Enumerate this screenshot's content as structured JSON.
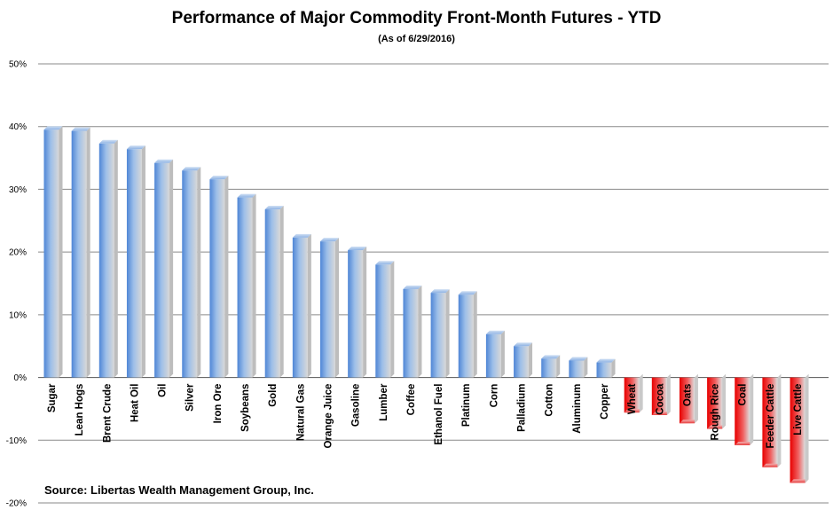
{
  "chart_data": {
    "type": "bar",
    "title": "Performance of Major Commodity Front-Month Futures - YTD",
    "subtitle": "(As of 6/29/2016)",
    "source": "Source:  Libertas Wealth Management Group, Inc.",
    "xlabel": "",
    "ylabel": "",
    "ylim": [
      -20,
      50
    ],
    "yticks": [
      50,
      40,
      30,
      20,
      10,
      0,
      -10,
      -20
    ],
    "ytick_labels": [
      "50%",
      "40%",
      "30%",
      "20%",
      "10%",
      "0%",
      "-10%",
      "-20%"
    ],
    "grid": true,
    "categories": [
      "Sugar",
      "Lean Hogs",
      "Brent Crude",
      "Heat Oil",
      "Oil",
      "Silver",
      "Iron Ore",
      "Soybeans",
      "Gold",
      "Natural Gas",
      "Orange Juice",
      "Gasoline",
      "Lumber",
      "Coffee",
      "Ethanol Fuel",
      "Platinum",
      "Corn",
      "Palladium",
      "Cotton",
      "Aluminum",
      "Copper",
      "Wheat",
      "Cocoa",
      "Oats",
      "Rough Rice",
      "Coal",
      "Feeder Cattle",
      "Live Cattle"
    ],
    "values": [
      39.5,
      39.3,
      37.3,
      36.4,
      34.2,
      33.0,
      31.6,
      28.7,
      26.8,
      22.3,
      21.7,
      20.3,
      18.0,
      14.1,
      13.5,
      13.2,
      6.9,
      5.0,
      3.0,
      2.7,
      2.4,
      -5.6,
      -6.0,
      -7.3,
      -8.2,
      -10.8,
      -14.3,
      -16.8
    ],
    "colors": {
      "positive": "#5b8ed6",
      "negative": "#e81010"
    }
  }
}
